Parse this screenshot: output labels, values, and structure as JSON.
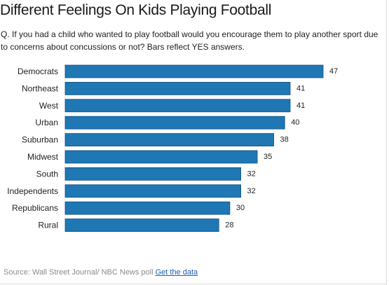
{
  "title": "Different Feelings On Kids Playing Football",
  "subtitle": "Q. If you had a child who wanted to play football would you encourage them to play another sport due to concerns about concussions or not? Bars reflect YES answers.",
  "source": {
    "text": "Source: Wall Street Journal/ NBC News poll ",
    "link_label": "Get the data"
  },
  "colors": {
    "bar": "#1f77b4",
    "bar_stroke": "#0f4f80"
  },
  "chart_data": {
    "type": "bar",
    "orientation": "horizontal",
    "categories": [
      "Democrats",
      "Northeast",
      "West",
      "Urban",
      "Suburban",
      "Midwest",
      "South",
      "Independents",
      "Republicans",
      "Rural"
    ],
    "values": [
      47,
      41,
      41,
      40,
      38,
      35,
      32,
      32,
      30,
      28
    ],
    "xlim": [
      0,
      50
    ],
    "grid": false,
    "legend": "none"
  }
}
